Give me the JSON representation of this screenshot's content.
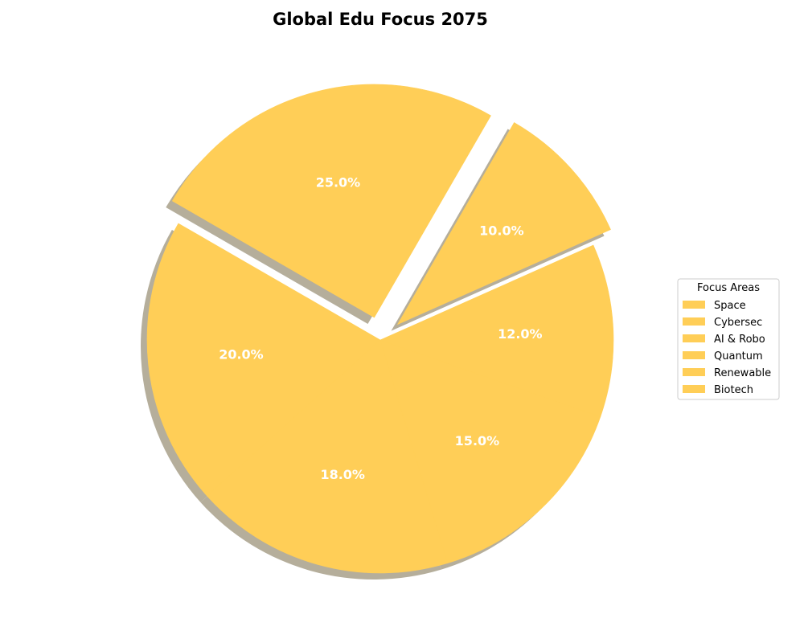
{
  "chart_data": {
    "type": "pie",
    "title": "Global Edu Focus 2075",
    "legend": {
      "title": "Focus Areas",
      "placement": "right"
    },
    "categories": [
      "Space",
      "Cybersec",
      "AI & Robo",
      "Quantum",
      "Renewable",
      "Biotech"
    ],
    "values": [
      25.0,
      20.0,
      18.0,
      15.0,
      12.0,
      10.0
    ],
    "labels": [
      "25.0%",
      "20.0%",
      "18.0%",
      "15.0%",
      "12.0%",
      "10.0%"
    ],
    "exploded": [
      "Space",
      "Biotech"
    ],
    "shadow": true,
    "colors": {
      "slice": "#ffce57",
      "shadow": "#a8a08a",
      "label": "#ffffff"
    }
  }
}
